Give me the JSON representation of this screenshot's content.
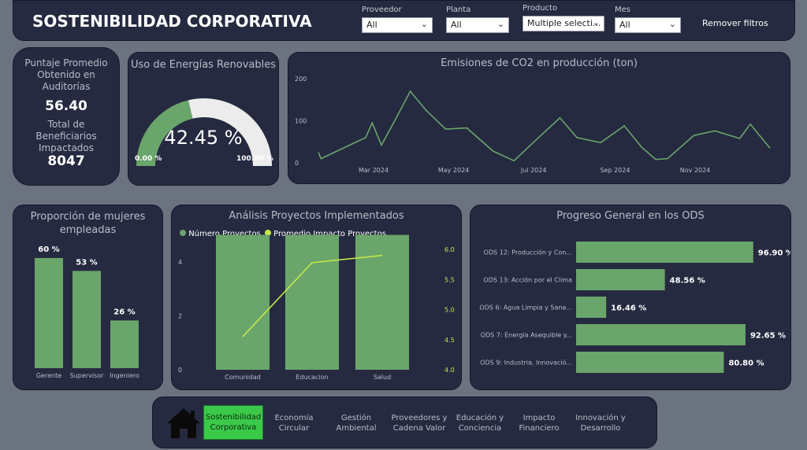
{
  "header": {
    "title": "SOSTENIBILIDAD CORPORATIVA",
    "clear_filters": "Remover filtros",
    "slicers": [
      {
        "label": "Proveedor",
        "value": "All"
      },
      {
        "label": "Planta",
        "value": "All"
      },
      {
        "label": "Producto",
        "value": "Multiple selecti..."
      },
      {
        "label": "Mes",
        "value": "All"
      }
    ]
  },
  "kpi": {
    "audit_label": "Puntaje Promedio Obtenido en Auditorías",
    "audit_value": "56.40",
    "beneficiaries_label": "Total de Beneficiarios Impactados",
    "beneficiaries_value": "8047"
  },
  "gauge": {
    "title": "Uso de Energías Renovables",
    "value_label": "42.45 %",
    "min_label": "0.00 %",
    "max_label": "100.00 %",
    "fill_color": "#6aa56c",
    "track_color": "#ececec"
  },
  "nav": {
    "items": [
      "Sostenibilidad Corporativa",
      "Economía Circular",
      "Gestión Ambiental",
      "Proveedores y Cadena Valor",
      "Educación y Conciencia",
      "Impacto Financiero",
      "Innovación y Desarrollo"
    ],
    "active_index": 0,
    "home_icon": "home-icon"
  },
  "chart_data": [
    {
      "id": "emissions",
      "type": "line",
      "title": "Emisiones de CO2 en producción (ton)",
      "y_ticks": [
        "0",
        "100",
        "200"
      ],
      "ylim": [
        0,
        200
      ],
      "x_ticks": [
        "Mar 2024",
        "May 2024",
        "Jul 2024",
        "Sep 2024",
        "Nov 2024"
      ],
      "color": "#6aa56c",
      "points": [
        {
          "x": "2024-01-19",
          "y": 25
        },
        {
          "x": "2024-01-21",
          "y": 10
        },
        {
          "x": "2024-02-24",
          "y": 60
        },
        {
          "x": "2024-02-29",
          "y": 95
        },
        {
          "x": "2024-03-07",
          "y": 42
        },
        {
          "x": "2024-03-18",
          "y": 105
        },
        {
          "x": "2024-03-29",
          "y": 170
        },
        {
          "x": "2024-04-10",
          "y": 125
        },
        {
          "x": "2024-04-25",
          "y": 80
        },
        {
          "x": "2024-05-11",
          "y": 83
        },
        {
          "x": "2024-05-31",
          "y": 28
        },
        {
          "x": "2024-06-16",
          "y": 5
        },
        {
          "x": "2024-07-03",
          "y": 55
        },
        {
          "x": "2024-07-21",
          "y": 107
        },
        {
          "x": "2024-08-03",
          "y": 60
        },
        {
          "x": "2024-08-21",
          "y": 48
        },
        {
          "x": "2024-09-08",
          "y": 88
        },
        {
          "x": "2024-09-21",
          "y": 38
        },
        {
          "x": "2024-10-02",
          "y": 8
        },
        {
          "x": "2024-10-11",
          "y": 10
        },
        {
          "x": "2024-10-31",
          "y": 65
        },
        {
          "x": "2024-11-16",
          "y": 76
        },
        {
          "x": "2024-12-05",
          "y": 58
        },
        {
          "x": "2024-12-13",
          "y": 92
        },
        {
          "x": "2024-12-28",
          "y": 35
        }
      ]
    },
    {
      "id": "women",
      "type": "bar",
      "title": "Proporción de mujeres empleadas",
      "categories": [
        "Gerente",
        "Supervisor",
        "Ingeniero"
      ],
      "values": [
        60,
        53,
        26
      ],
      "data_labels": [
        "60 %",
        "53 %",
        "26 %"
      ],
      "ylim": [
        0,
        60
      ],
      "color": "#6aa56c"
    },
    {
      "id": "projects",
      "type": "bar",
      "title": "Análisis Proyectos Implementados",
      "categories": [
        "Comunidad",
        "Educacion",
        "Salud"
      ],
      "y_ticks": [
        "0",
        "2",
        "4"
      ],
      "ylim": [
        0,
        5.0
      ],
      "y2_ticks": [
        "4.0",
        "4.5",
        "5.0",
        "5.5",
        "6.0"
      ],
      "y2lim": [
        4.0,
        6.0
      ],
      "series": [
        {
          "name": "Número Proyectos",
          "type": "bar",
          "color": "#6aa56c",
          "values": [
            5,
            5,
            5
          ]
        },
        {
          "name": "Promedio Impacto Proyectos",
          "type": "line",
          "color": "#c3e84a",
          "values": [
            4.55,
            5.78,
            5.9
          ]
        }
      ]
    },
    {
      "id": "ods",
      "type": "bar",
      "orientation": "horizontal",
      "title": "Progreso General en los ODS",
      "categories": [
        "ODS 12: Producción y Con...",
        "ODS 13: Acción por el Clima",
        "ODS 6: Agua Limpia y Sane...",
        "ODS 7: Energía Asequible y...",
        "ODS 9: Industria, Innovació..."
      ],
      "values": [
        96.9,
        48.56,
        16.46,
        92.65,
        80.8
      ],
      "data_labels": [
        "96.90 %",
        "48.56 %",
        "16.46 %",
        "92.65 %",
        "80.80 %"
      ],
      "xlim": [
        0,
        100
      ],
      "color": "#6aa56c"
    }
  ]
}
